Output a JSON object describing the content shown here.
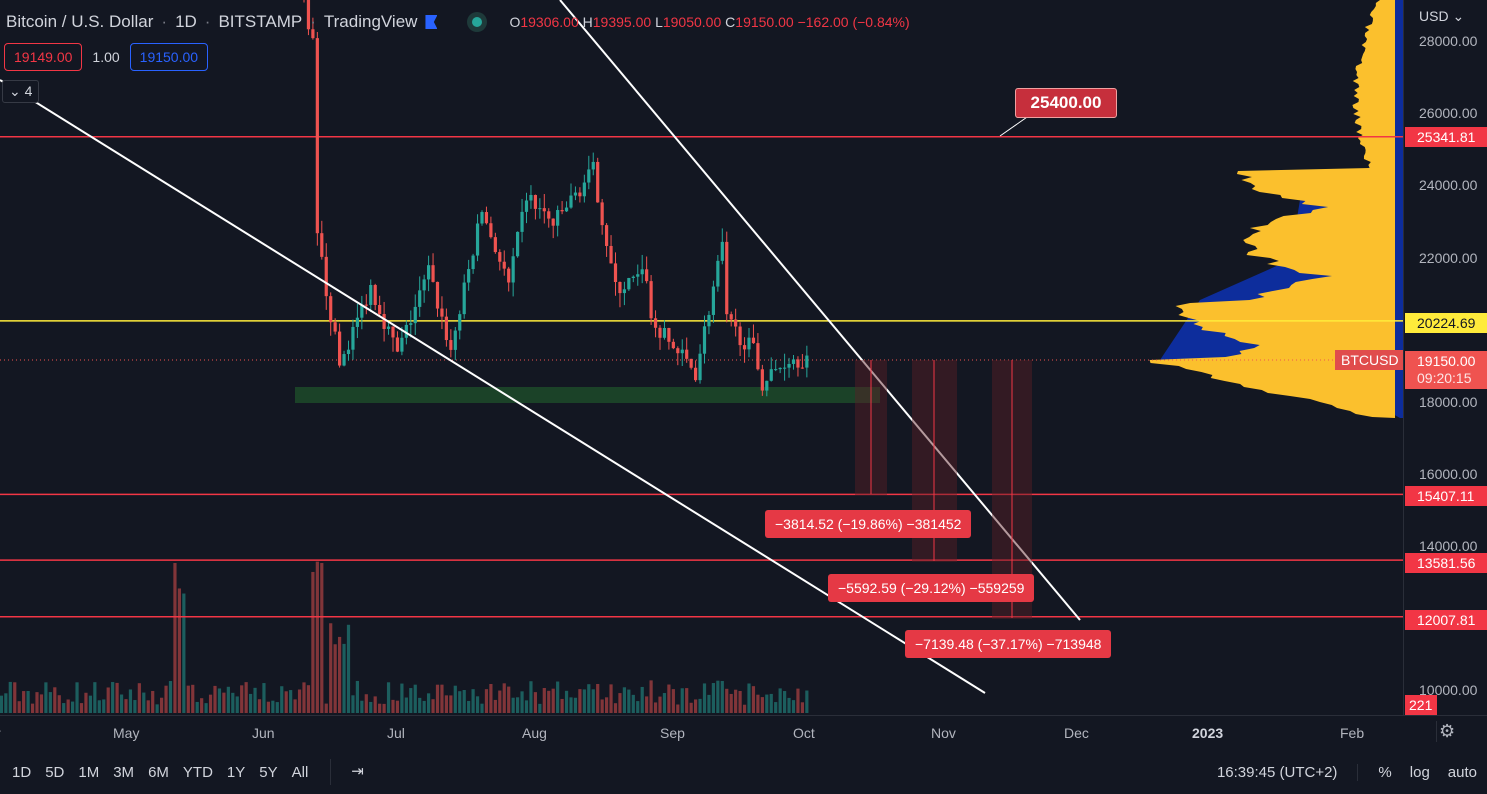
{
  "header": {
    "symbol": "Bitcoin / U.S. Dollar",
    "interval": "1D",
    "exchange": "BITSTAMP",
    "source": "TradingView",
    "ohlc": {
      "o_label": "O",
      "o": "19306.00",
      "h_label": "H",
      "h": "19395.00",
      "l_label": "L",
      "l": "19050.00",
      "c_label": "C",
      "c": "19150.00",
      "change": "−162.00 (−0.84%)"
    }
  },
  "bidask": {
    "bid": "19149.00",
    "spread": "1.00",
    "ask": "19150.00"
  },
  "indicators_toggle": "4",
  "price_axis": {
    "currency": "USD",
    "ticks": [
      "28000.00",
      "26000.00",
      "24000.00",
      "22000.00",
      "18000.00",
      "16000.00",
      "14000.00",
      "10000.00"
    ],
    "tags": [
      {
        "value": "25341.81",
        "color": "#f23645"
      },
      {
        "value": "20224.69",
        "color": "#ffeb3b"
      },
      {
        "value": "15407.11",
        "color": "#f23645"
      },
      {
        "value": "13581.56",
        "color": "#f23645"
      },
      {
        "value": "12007.81",
        "color": "#f23645"
      },
      {
        "value": "221",
        "color": "#f23645"
      }
    ],
    "last_price": "19150.00",
    "countdown": "09:20:15",
    "symbol_tag": "BTCUSD"
  },
  "time_axis": [
    "r",
    "May",
    "Jun",
    "Jul",
    "Aug",
    "Sep",
    "Oct",
    "Nov",
    "Dec",
    "2023",
    "Feb"
  ],
  "callout": "25400.00",
  "measurements": [
    "−3814.52 (−19.86%) −381452",
    "−5592.59 (−29.12%) −559259",
    "−7139.48 (−37.17%) −713948"
  ],
  "bottom": {
    "ranges": [
      "1D",
      "5D",
      "1M",
      "3M",
      "6M",
      "YTD",
      "1Y",
      "5Y",
      "All"
    ],
    "clock": "16:39:45 (UTC+2)",
    "percent": "%",
    "log": "log",
    "auto": "auto"
  },
  "colors": {
    "up": "#26a69a",
    "down": "#ef5350",
    "resistance": "#f23645",
    "poc": "#ffeb3b",
    "profile_up": "#fbc02d",
    "profile_bg": "#0d2d9c"
  },
  "chart_data": {
    "type": "candlestick",
    "symbol": "BTCUSD",
    "price_range": [
      10000,
      28500
    ],
    "price_path": [
      [
        "2022-06-08",
        30200
      ],
      [
        "2022-06-12",
        28000
      ],
      [
        "2022-06-13",
        22500
      ],
      [
        "2022-06-18",
        19000
      ],
      [
        "2022-06-25",
        21200
      ],
      [
        "2022-07-01",
        19300
      ],
      [
        "2022-07-08",
        21600
      ],
      [
        "2022-07-13",
        19400
      ],
      [
        "2022-07-20",
        23300
      ],
      [
        "2022-07-26",
        21200
      ],
      [
        "2022-07-30",
        23700
      ],
      [
        "2022-08-05",
        22900
      ],
      [
        "2022-08-14",
        24400
      ],
      [
        "2022-08-19",
        21100
      ],
      [
        "2022-08-26",
        21500
      ],
      [
        "2022-08-27",
        20200
      ],
      [
        "2022-09-06",
        18800
      ],
      [
        "2022-09-12",
        22300
      ],
      [
        "2022-09-13",
        20200
      ],
      [
        "2022-09-19",
        19400
      ],
      [
        "2022-09-21",
        18500
      ],
      [
        "2022-09-27",
        19200
      ],
      [
        "2022-10-01",
        19150
      ]
    ],
    "levels": [
      25341.81,
      20224.69,
      15407.11,
      13581.56,
      12007.81
    ]
  }
}
